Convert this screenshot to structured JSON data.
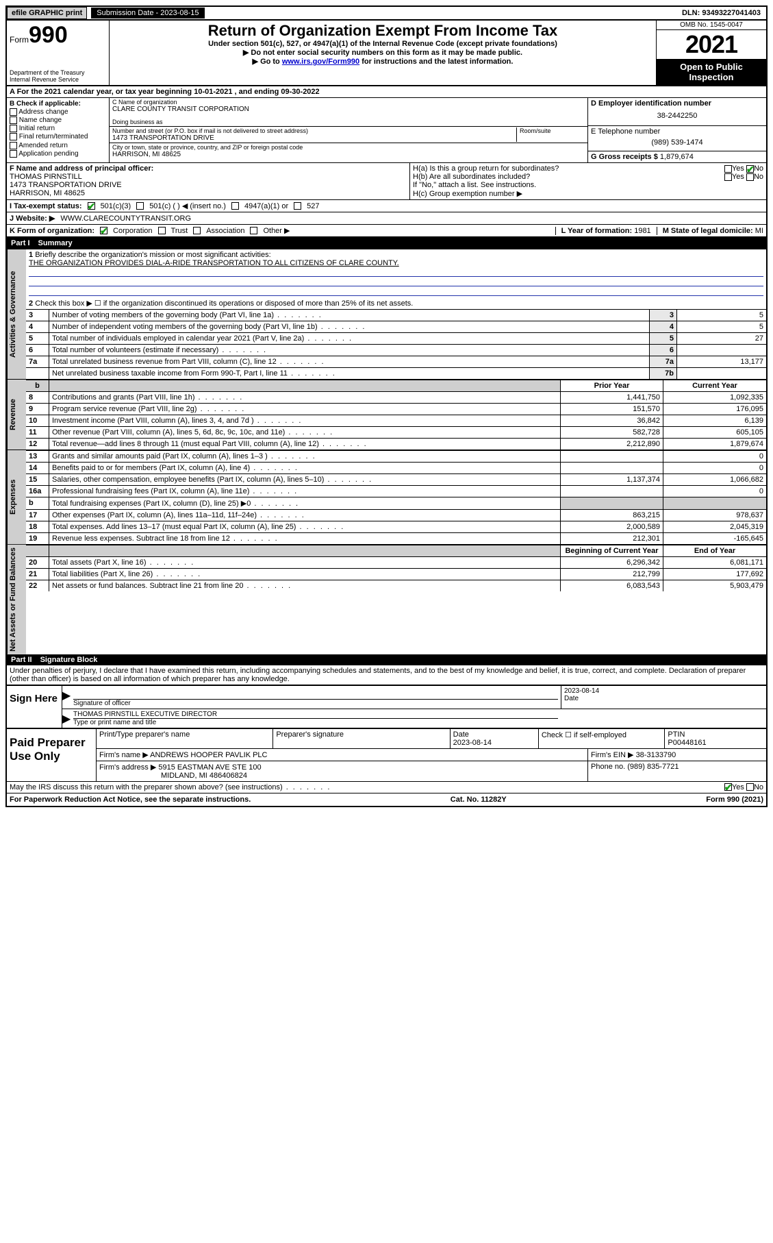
{
  "topbar": {
    "efile": "efile GRAPHIC print",
    "submission_label": "Submission Date - ",
    "submission_date": "2023-08-15",
    "dln_label": "DLN: ",
    "dln": "93493227041403"
  },
  "header": {
    "form_word": "Form",
    "form_num": "990",
    "dept": "Department of the Treasury\nInternal Revenue Service",
    "title": "Return of Organization Exempt From Income Tax",
    "subtitle": "Under section 501(c), 527, or 4947(a)(1) of the Internal Revenue Code (except private foundations)",
    "warn1": "▶ Do not enter social security numbers on this form as it may be made public.",
    "warn2_pre": "▶ Go to ",
    "warn2_link": "www.irs.gov/Form990",
    "warn2_post": " for instructions and the latest information.",
    "omb": "OMB No. 1545-0047",
    "year": "2021",
    "open": "Open to Public Inspection"
  },
  "period": {
    "a_pre": "A For the 2021 calendar year, or tax year beginning ",
    "begin": "10-01-2021",
    "mid": " , and ending ",
    "end": "09-30-2022"
  },
  "checkB": {
    "label": "B Check if applicable:",
    "items": [
      "Address change",
      "Name change",
      "Initial return",
      "Final return/terminated",
      "Amended return",
      "Application pending"
    ]
  },
  "entity": {
    "c_label": "C Name of organization",
    "name": "CLARE COUNTY TRANSIT CORPORATION",
    "dba_label": "Doing business as",
    "addr_label": "Number and street (or P.O. box if mail is not delivered to street address)",
    "room_label": "Room/suite",
    "street": "1473 TRANSPORTATION DRIVE",
    "city_label": "City or town, state or province, country, and ZIP or foreign postal code",
    "city": "HARRISON, MI  48625",
    "d_label": "D Employer identification number",
    "ein": "38-2442250",
    "e_label": "E Telephone number",
    "phone": "(989) 539-1474",
    "g_label": "G Gross receipts $ ",
    "gross": "1,879,674"
  },
  "officer": {
    "f_label": "F Name and address of principal officer:",
    "name": "THOMAS PIRNSTILL",
    "addr1": "1473 TRANSPORTATION DRIVE",
    "addr2": "HARRISON, MI  48625",
    "ha": "H(a)  Is this a group return for subordinates?",
    "ha_yes": "Yes",
    "ha_no": "No",
    "hb": "H(b)  Are all subordinates included?",
    "hb_yes": "Yes",
    "hb_no": "No",
    "hb_note": "If \"No,\" attach a list. See instructions.",
    "hc": "H(c)  Group exemption number ▶"
  },
  "status": {
    "i_label": "I  Tax-exempt status:",
    "c3": "501(c)(3)",
    "cOther": "501(c) (  ) ◀ (insert no.)",
    "a4947": "4947(a)(1) or",
    "s527": "527",
    "j_label": "J  Website: ▶ ",
    "website": "WWW.CLARECOUNTYTRANSIT.ORG",
    "k_label": "K Form of organization:",
    "k_opts": [
      "Corporation",
      "Trust",
      "Association",
      "Other ▶"
    ],
    "l_label": "L Year of formation: ",
    "l_val": "1981",
    "m_label": "M State of legal domicile: ",
    "m_val": "MI"
  },
  "part1": {
    "label": "Part I",
    "title": "Summary"
  },
  "summary": {
    "q1": "Briefly describe the organization's mission or most significant activities:",
    "mission": "THE ORGANIZATION PROVIDES DIAL-A-RIDE TRANSPORTATION TO ALL CITIZENS OF CLARE COUNTY.",
    "q2": "Check this box ▶ ☐  if the organization discontinued its operations or disposed of more than 25% of its net assets.",
    "rows_simple": [
      {
        "n": "3",
        "t": "Number of voting members of the governing body (Part VI, line 1a)",
        "k": "3",
        "v": "5"
      },
      {
        "n": "4",
        "t": "Number of independent voting members of the governing body (Part VI, line 1b)",
        "k": "4",
        "v": "5"
      },
      {
        "n": "5",
        "t": "Total number of individuals employed in calendar year 2021 (Part V, line 2a)",
        "k": "5",
        "v": "27"
      },
      {
        "n": "6",
        "t": "Total number of volunteers (estimate if necessary)",
        "k": "6",
        "v": ""
      },
      {
        "n": "7a",
        "t": "Total unrelated business revenue from Part VIII, column (C), line 12",
        "k": "7a",
        "v": "13,177"
      },
      {
        "n": "",
        "t": "Net unrelated business taxable income from Form 990-T, Part I, line 11",
        "k": "7b",
        "v": ""
      }
    ],
    "col_prior": "Prior Year",
    "col_curr": "Current Year",
    "revenue": [
      {
        "n": "8",
        "t": "Contributions and grants (Part VIII, line 1h)",
        "p": "1,441,750",
        "c": "1,092,335"
      },
      {
        "n": "9",
        "t": "Program service revenue (Part VIII, line 2g)",
        "p": "151,570",
        "c": "176,095"
      },
      {
        "n": "10",
        "t": "Investment income (Part VIII, column (A), lines 3, 4, and 7d )",
        "p": "36,842",
        "c": "6,139"
      },
      {
        "n": "11",
        "t": "Other revenue (Part VIII, column (A), lines 5, 6d, 8c, 9c, 10c, and 11e)",
        "p": "582,728",
        "c": "605,105"
      },
      {
        "n": "12",
        "t": "Total revenue—add lines 8 through 11 (must equal Part VIII, column (A), line 12)",
        "p": "2,212,890",
        "c": "1,879,674"
      }
    ],
    "expenses": [
      {
        "n": "13",
        "t": "Grants and similar amounts paid (Part IX, column (A), lines 1–3 )",
        "p": "",
        "c": "0"
      },
      {
        "n": "14",
        "t": "Benefits paid to or for members (Part IX, column (A), line 4)",
        "p": "",
        "c": "0"
      },
      {
        "n": "15",
        "t": "Salaries, other compensation, employee benefits (Part IX, column (A), lines 5–10)",
        "p": "1,137,374",
        "c": "1,066,682"
      },
      {
        "n": "16a",
        "t": "Professional fundraising fees (Part IX, column (A), line 11e)",
        "p": "",
        "c": "0"
      },
      {
        "n": "b",
        "t": "Total fundraising expenses (Part IX, column (D), line 25) ▶0",
        "p": "",
        "c": "",
        "shade": true
      },
      {
        "n": "17",
        "t": "Other expenses (Part IX, column (A), lines 11a–11d, 11f–24e)",
        "p": "863,215",
        "c": "978,637"
      },
      {
        "n": "18",
        "t": "Total expenses. Add lines 13–17 (must equal Part IX, column (A), line 25)",
        "p": "2,000,589",
        "c": "2,045,319"
      },
      {
        "n": "19",
        "t": "Revenue less expenses. Subtract line 18 from line 12",
        "p": "212,301",
        "c": "-165,645"
      }
    ],
    "col_boy": "Beginning of Current Year",
    "col_eoy": "End of Year",
    "netassets": [
      {
        "n": "20",
        "t": "Total assets (Part X, line 16)",
        "p": "6,296,342",
        "c": "6,081,171"
      },
      {
        "n": "21",
        "t": "Total liabilities (Part X, line 26)",
        "p": "212,799",
        "c": "177,692"
      },
      {
        "n": "22",
        "t": "Net assets or fund balances. Subtract line 21 from line 20",
        "p": "6,083,543",
        "c": "5,903,479"
      }
    ],
    "side_act": "Activities & Governance",
    "side_rev": "Revenue",
    "side_exp": "Expenses",
    "side_net": "Net Assets or Fund Balances"
  },
  "part2": {
    "label": "Part II",
    "title": "Signature Block"
  },
  "sig": {
    "perjury": "Under penalties of perjury, I declare that I have examined this return, including accompanying schedules and statements, and to the best of my knowledge and belief, it is true, correct, and complete. Declaration of preparer (other than officer) is based on all information of which preparer has any knowledge.",
    "sign_here": "Sign Here",
    "sig_officer": "Signature of officer",
    "date": "Date",
    "date_val": "2023-08-14",
    "name_title": "THOMAS PIRNSTILL  EXECUTIVE DIRECTOR",
    "type_name": "Type or print name and title"
  },
  "prep": {
    "label": "Paid Preparer Use Only",
    "h1": "Print/Type preparer's name",
    "h2": "Preparer's signature",
    "h3": "Date",
    "h3v": "2023-08-14",
    "h4a": "Check ☐ if self-employed",
    "h5": "PTIN",
    "ptin": "P00448161",
    "firm_name_l": "Firm's name    ▶ ",
    "firm_name": "ANDREWS HOOPER PAVLIK PLC",
    "firm_ein_l": "Firm's EIN ▶ ",
    "firm_ein": "38-3133790",
    "firm_addr_l": "Firm's address ▶ ",
    "firm_addr1": "5915 EASTMAN AVE STE 100",
    "firm_addr2": "MIDLAND, MI  486406824",
    "phone_l": "Phone no. ",
    "phone": "(989) 835-7721",
    "discuss": "May the IRS discuss this return with the preparer shown above? (see instructions)",
    "yes": "Yes",
    "no": "No"
  },
  "footer": {
    "pra": "For Paperwork Reduction Act Notice, see the separate instructions.",
    "cat": "Cat. No. 11282Y",
    "form": "Form 990 (2021)"
  }
}
